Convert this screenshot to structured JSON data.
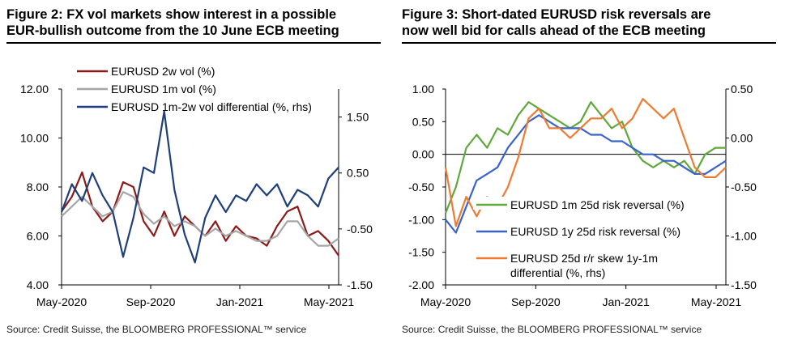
{
  "chart_data": [
    {
      "type": "line",
      "title": "Figure 2: FX vol markets show interest in a possible EUR-bullish outcome from the 10 June ECB meeting",
      "title_lines": [
        "Figure 2: FX vol markets show interest in a possible",
        "EUR-bullish outcome from the 10 June ECB meeting"
      ],
      "source": "Source: Credit Suisse, the BLOOMBERG PROFESSIONAL™ service",
      "x_ticks": [
        "May-2020",
        "Sep-2020",
        "Jan-2021",
        "May-2021"
      ],
      "x_range": [
        0,
        13.5
      ],
      "y_left": {
        "min": 4.0,
        "max": 12.0,
        "ticks": [
          "12.00",
          "10.00",
          "8.00",
          "6.00",
          "4.00"
        ],
        "tick_values": [
          12,
          10,
          8,
          6,
          4
        ]
      },
      "y_right": {
        "min": -1.5,
        "max": 2.0,
        "ticks": [
          "1.50",
          "0.50",
          "-0.50",
          "-1.50"
        ],
        "tick_values": [
          1.5,
          0.5,
          -0.5,
          -1.5
        ]
      },
      "series": [
        {
          "name": "EURUSD 2w vol (%)",
          "axis": "left",
          "color": "#8b1a1a",
          "x": [
            0,
            0.5,
            1,
            1.5,
            2,
            2.5,
            3,
            3.5,
            4,
            4.5,
            5,
            5.5,
            6,
            6.5,
            7,
            7.5,
            8,
            8.5,
            9,
            9.5,
            10,
            10.5,
            11,
            11.5,
            12,
            12.5,
            13,
            13.5
          ],
          "values": [
            7.0,
            7.6,
            8.6,
            7.2,
            6.6,
            7.0,
            8.2,
            8.0,
            6.6,
            6.0,
            7.0,
            6.0,
            6.8,
            6.4,
            6.0,
            6.6,
            5.8,
            6.4,
            6.0,
            5.9,
            5.6,
            6.4,
            7.0,
            7.2,
            6.0,
            6.2,
            5.8,
            5.2
          ]
        },
        {
          "name": "EURUSD 1m vol (%)",
          "axis": "left",
          "color": "#a6a6a6",
          "x": [
            0,
            0.5,
            1,
            1.5,
            2,
            2.5,
            3,
            3.5,
            4,
            4.5,
            5,
            5.5,
            6,
            6.5,
            7,
            7.5,
            8,
            8.5,
            9,
            9.5,
            10,
            10.5,
            11,
            11.5,
            12,
            12.5,
            13,
            13.5
          ],
          "values": [
            6.8,
            7.2,
            7.6,
            7.2,
            6.8,
            7.0,
            7.8,
            7.6,
            6.9,
            6.5,
            6.8,
            6.4,
            6.6,
            6.4,
            6.0,
            6.3,
            6.0,
            6.2,
            6.0,
            5.8,
            5.8,
            6.0,
            6.6,
            6.6,
            6.0,
            5.6,
            5.6,
            5.9
          ]
        },
        {
          "name": "EURUSD 1m-2w vol differential (%, rhs)",
          "axis": "right",
          "color": "#1f3f7a",
          "x": [
            0,
            0.5,
            1,
            1.5,
            2,
            2.5,
            3,
            3.5,
            4,
            4.5,
            5,
            5.5,
            6,
            6.5,
            7,
            7.5,
            8,
            8.5,
            9,
            9.5,
            10,
            10.5,
            11,
            11.5,
            12,
            12.5,
            13,
            13.5
          ],
          "values": [
            -0.2,
            0.3,
            0.0,
            0.5,
            0.1,
            -0.2,
            -1.0,
            -0.3,
            0.6,
            0.5,
            1.6,
            0.2,
            -0.6,
            -1.1,
            -0.3,
            0.1,
            -0.2,
            0.1,
            0.0,
            0.3,
            0.1,
            0.3,
            -0.1,
            0.2,
            0.1,
            -0.1,
            0.4,
            0.6
          ]
        }
      ]
    },
    {
      "type": "line",
      "title": "Figure 3: Short-dated EURUSD risk reversals are now well bid for calls ahead of the ECB meeting",
      "title_lines": [
        "Figure 3: Short-dated EURUSD risk reversals are",
        "now well bid for calls ahead of the ECB meeting"
      ],
      "source": "Source: Credit Suisse, the BLOOMBERG PROFESSIONAL™ service",
      "x_ticks": [
        "May-2020",
        "Sep-2020",
        "Jan-2021",
        "May-2021"
      ],
      "x_range": [
        0,
        13.5
      ],
      "y_left": {
        "min": -2.0,
        "max": 1.0,
        "ticks": [
          "1.00",
          "0.50",
          "0.00",
          "-0.50",
          "-1.00",
          "-1.50",
          "-2.00"
        ],
        "tick_values": [
          1,
          0.5,
          0,
          -0.5,
          -1,
          -1.5,
          -2
        ]
      },
      "y_right": {
        "min": -1.5,
        "max": 0.5,
        "ticks": [
          "0.50",
          "0.00",
          "-0.50",
          "-1.00",
          "-1.50"
        ],
        "tick_values": [
          0.5,
          0,
          -0.5,
          -1,
          -1.5
        ]
      },
      "series": [
        {
          "name": "EURUSD 1m 25d risk reversal (%)",
          "axis": "left",
          "color": "#5fa83a",
          "x": [
            0,
            0.5,
            1,
            1.5,
            2,
            2.5,
            3,
            3.5,
            4,
            4.5,
            5,
            5.5,
            6,
            6.5,
            7,
            7.5,
            8,
            8.5,
            9,
            9.5,
            10,
            10.5,
            11,
            11.5,
            12,
            12.5,
            13,
            13.5
          ],
          "values": [
            -0.9,
            -0.5,
            0.1,
            0.3,
            0.1,
            0.4,
            0.3,
            0.6,
            0.8,
            0.7,
            0.6,
            0.5,
            0.4,
            0.5,
            0.8,
            0.6,
            0.4,
            0.5,
            0.1,
            -0.1,
            -0.2,
            -0.1,
            -0.2,
            -0.1,
            -0.3,
            0.0,
            0.1,
            0.1
          ]
        },
        {
          "name": "EURUSD 1y 25d risk reversal (%)",
          "axis": "left",
          "color": "#3a63c9",
          "x": [
            0,
            0.5,
            1,
            1.5,
            2,
            2.5,
            3,
            3.5,
            4,
            4.5,
            5,
            5.5,
            6,
            6.5,
            7,
            7.5,
            8,
            8.5,
            9,
            9.5,
            10,
            10.5,
            11,
            11.5,
            12,
            12.5,
            13,
            13.5
          ],
          "values": [
            -1.0,
            -1.2,
            -0.8,
            -0.4,
            -0.3,
            -0.2,
            0.1,
            0.3,
            0.5,
            0.6,
            0.5,
            0.4,
            0.4,
            0.4,
            0.3,
            0.3,
            0.2,
            0.2,
            0.1,
            0.0,
            0.0,
            -0.1,
            -0.1,
            -0.2,
            -0.3,
            -0.3,
            -0.2,
            -0.1
          ]
        },
        {
          "name": "EURUSD 25d r/r skew 1y-1m differential (%, rhs)",
          "axis": "right",
          "color": "#ee7b30",
          "legend_lines": [
            "EURUSD 25d r/r skew 1y-1m",
            "differential (%, rhs)"
          ],
          "x": [
            0,
            0.5,
            1,
            1.5,
            2,
            2.5,
            3,
            3.5,
            4,
            4.5,
            5,
            5.5,
            6,
            6.5,
            7,
            7.5,
            8,
            8.5,
            9,
            9.5,
            10,
            10.5,
            11,
            11.5,
            12,
            12.5,
            13,
            13.5
          ],
          "values": [
            -0.3,
            -0.9,
            -0.6,
            -0.8,
            -0.6,
            -0.7,
            -0.5,
            -0.2,
            0.2,
            0.3,
            0.1,
            0.1,
            0.0,
            0.1,
            0.2,
            0.2,
            0.3,
            0.1,
            0.2,
            0.4,
            0.3,
            0.2,
            0.3,
            0.0,
            -0.3,
            -0.4,
            -0.4,
            -0.3
          ]
        }
      ]
    }
  ]
}
